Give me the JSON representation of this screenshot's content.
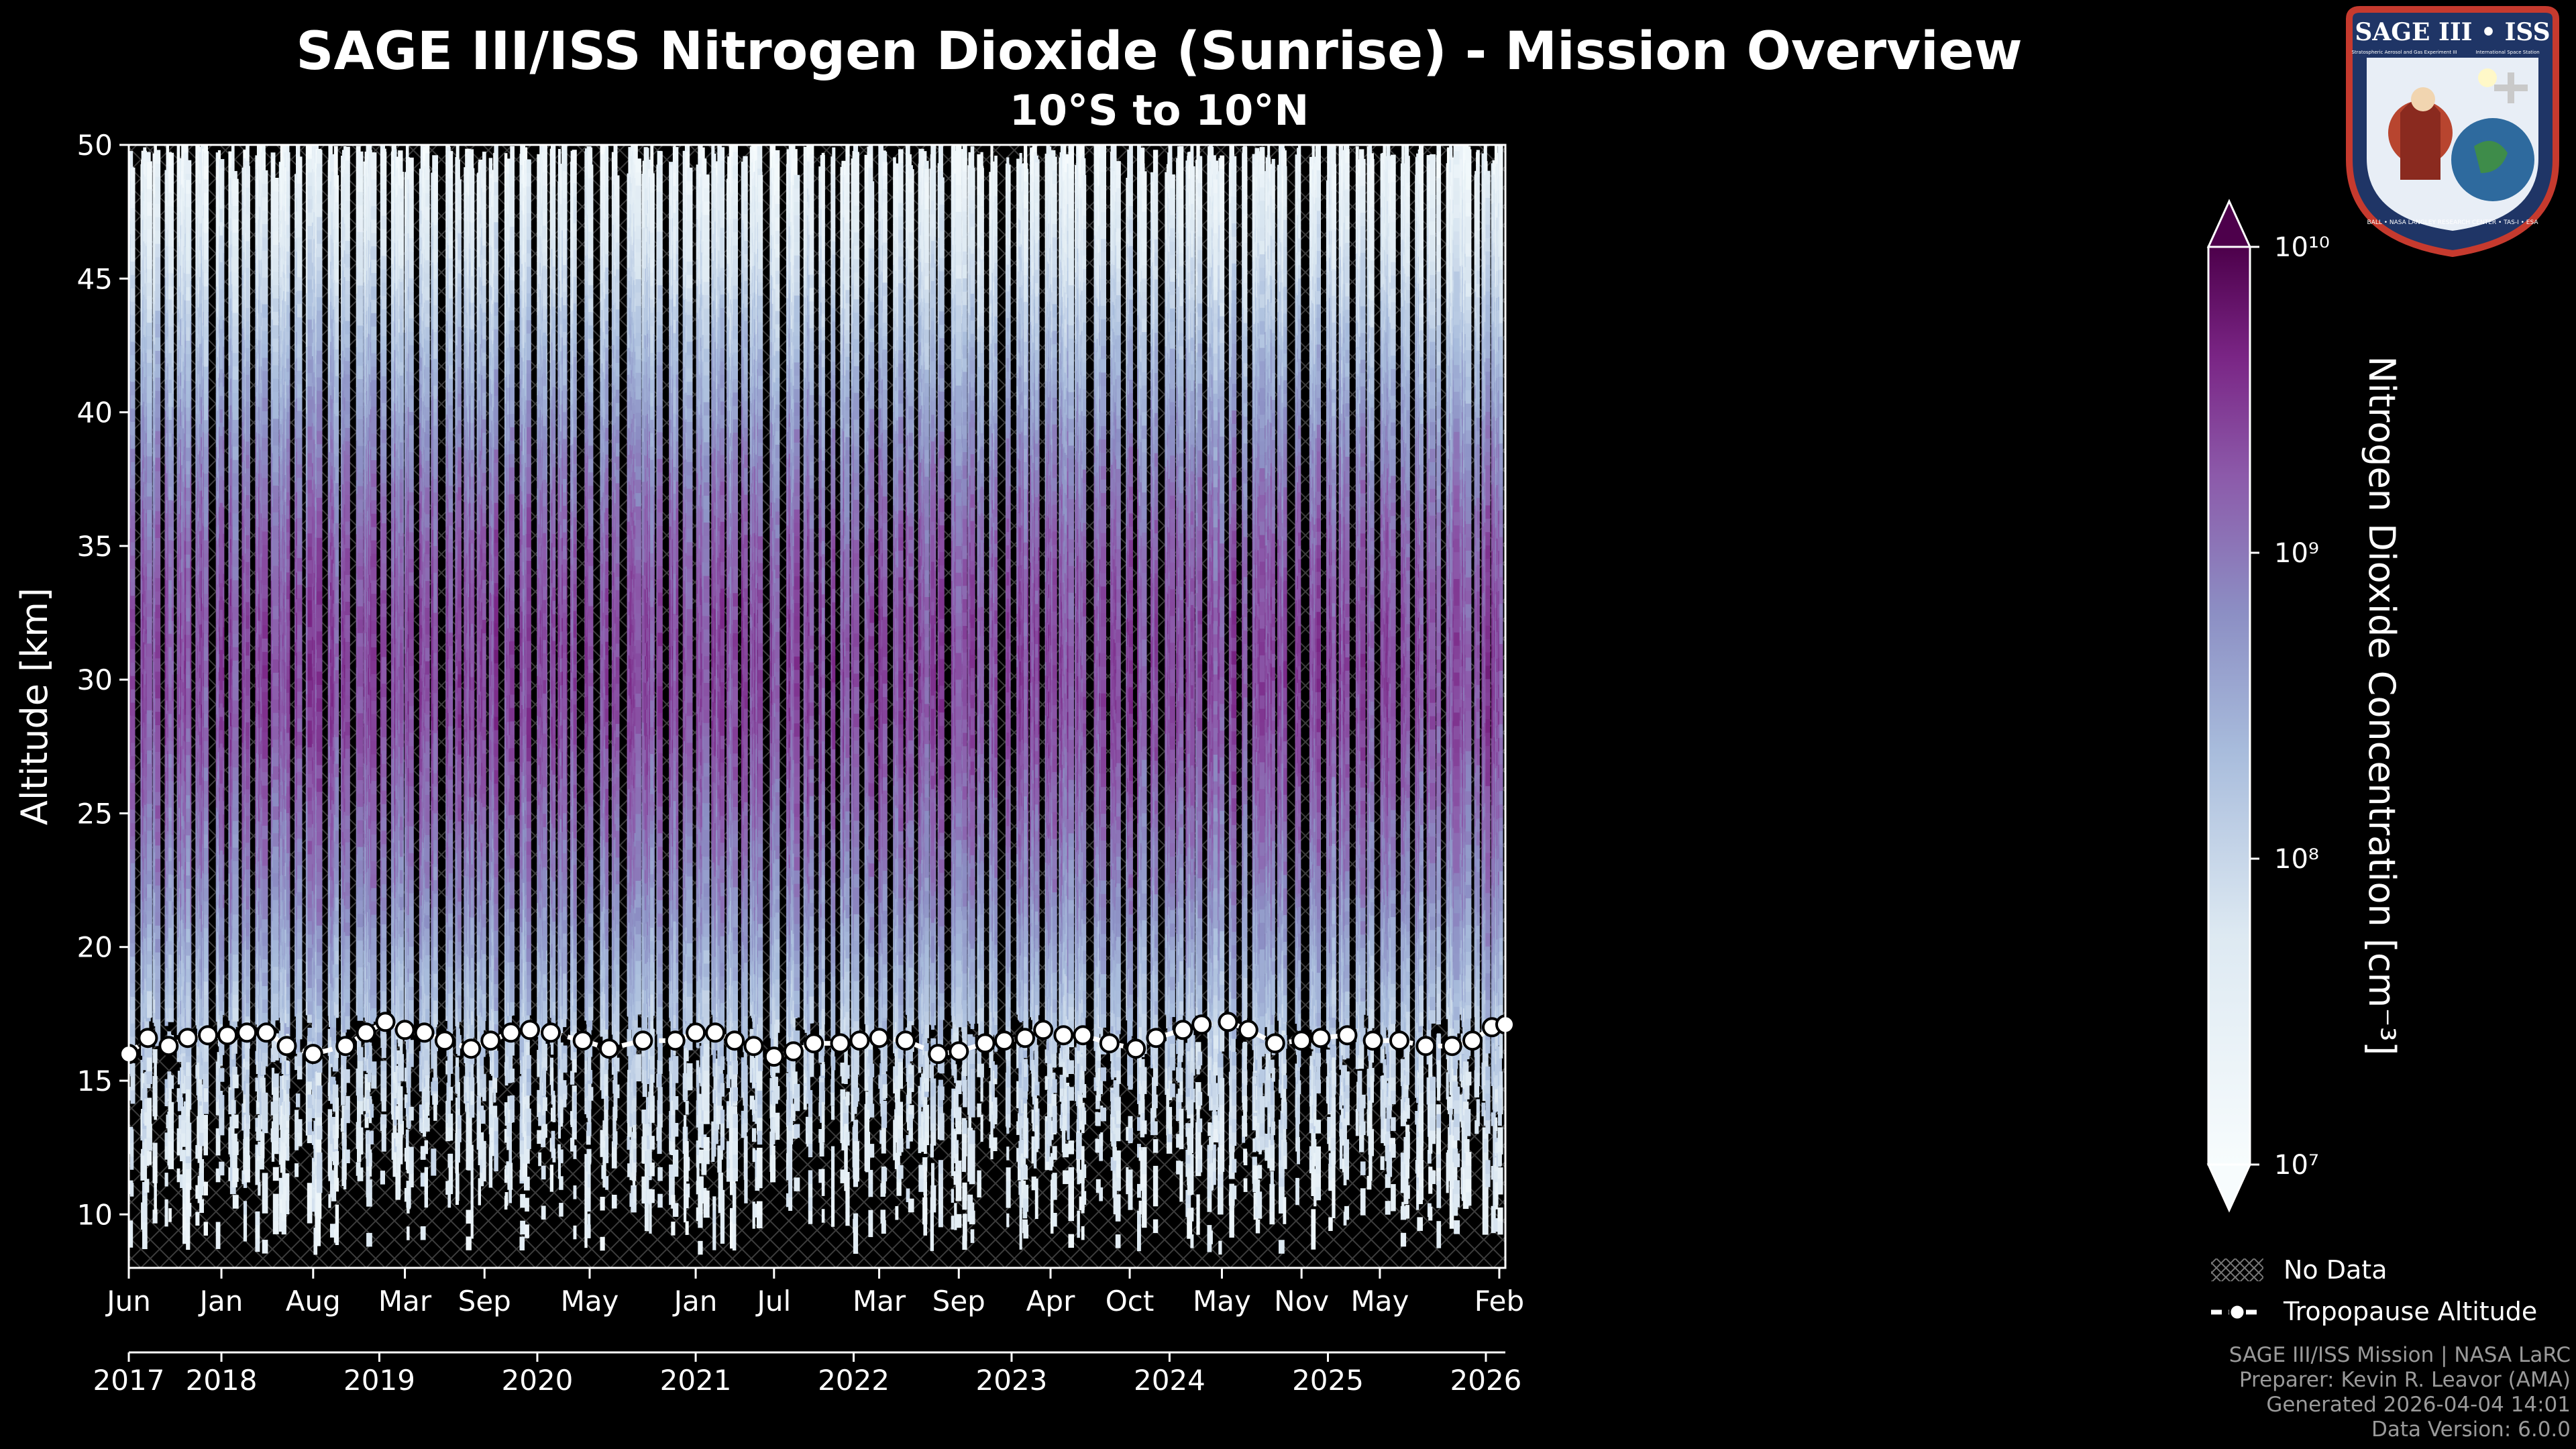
{
  "header": {
    "title": "SAGE III/ISS Nitrogen Dioxide (Sunrise) - Mission Overview",
    "subtitle": "10°S to 10°N"
  },
  "logo": {
    "text_top": "SAGE III • ISS",
    "text_ring": "BALL • NASA LANGLEY RESEARCH CENTER • TAS-I • ESA",
    "text_small_left": "Stratospheric Aerosol and Gas Experiment III",
    "text_small_right": "International Space Station"
  },
  "legend": {
    "no_data_label": "No Data",
    "tropopause_label": "Tropopause Altitude"
  },
  "footer": {
    "line1": "SAGE III/ISS Mission | NASA LaRC",
    "line2": "Preparer: Kevin R. Leavor (AMA)",
    "line3": "Generated 2026-04-04 14:01",
    "line4": "Data Version: 6.0.0"
  },
  "colors": {
    "background": "#000000",
    "tropopause": "#ffffff",
    "colormap": [
      "#f7fcfd",
      "#bfd3e6",
      "#8c96c6",
      "#88419d",
      "#4d004b"
    ]
  },
  "chart_data": {
    "type": "heatmap",
    "title": "SAGE III/ISS Nitrogen Dioxide (Sunrise) - Mission Overview",
    "subtitle": "10°S to 10°N",
    "ylabel": "Altitude [km]",
    "ylim": [
      8,
      50
    ],
    "yticks": [
      10,
      15,
      20,
      25,
      30,
      35,
      40,
      45,
      50
    ],
    "xlim": [
      "2017-06-01",
      "2026-02-15"
    ],
    "x_month_ticks": [
      {
        "date": "2017-06-01",
        "label": "Jun"
      },
      {
        "date": "2018-01-01",
        "label": "Jan"
      },
      {
        "date": "2018-08-01",
        "label": "Aug"
      },
      {
        "date": "2019-03-01",
        "label": "Mar"
      },
      {
        "date": "2019-09-01",
        "label": "Sep"
      },
      {
        "date": "2020-05-01",
        "label": "May"
      },
      {
        "date": "2021-01-01",
        "label": "Jan"
      },
      {
        "date": "2021-07-01",
        "label": "Jul"
      },
      {
        "date": "2022-03-01",
        "label": "Mar"
      },
      {
        "date": "2022-09-01",
        "label": "Sep"
      },
      {
        "date": "2023-04-01",
        "label": "Apr"
      },
      {
        "date": "2023-10-01",
        "label": "Oct"
      },
      {
        "date": "2024-05-01",
        "label": "May"
      },
      {
        "date": "2024-11-01",
        "label": "Nov"
      },
      {
        "date": "2025-05-01",
        "label": "May"
      },
      {
        "date": "2026-02-01",
        "label": "Feb"
      }
    ],
    "x_year_ticks": [
      {
        "date": "2017-06-01",
        "label": "2017"
      },
      {
        "date": "2018-01-01",
        "label": "2018"
      },
      {
        "date": "2019-01-01",
        "label": "2019"
      },
      {
        "date": "2020-01-01",
        "label": "2020"
      },
      {
        "date": "2021-01-01",
        "label": "2021"
      },
      {
        "date": "2022-01-01",
        "label": "2022"
      },
      {
        "date": "2023-01-01",
        "label": "2023"
      },
      {
        "date": "2024-01-01",
        "label": "2024"
      },
      {
        "date": "2025-01-01",
        "label": "2025"
      },
      {
        "date": "2026-01-01",
        "label": "2026"
      }
    ],
    "colorbar": {
      "label": "Nitrogen Dioxide Concentration [cm⁻³]",
      "scale": "log",
      "range": [
        10000000.0,
        10000000000.0
      ],
      "tick_values": [
        10000000.0,
        100000000.0,
        1000000000.0,
        10000000000.0
      ],
      "tick_labels": [
        "10⁷",
        "10⁸",
        "10⁹",
        "10¹⁰"
      ]
    },
    "profile": {
      "altitudes_km": [
        8,
        12,
        15,
        17,
        20,
        22,
        25,
        28,
        30,
        32,
        35,
        38,
        40,
        43,
        45,
        48,
        50
      ],
      "log10_concentration": [
        7.4,
        7.7,
        8.0,
        8.2,
        8.6,
        8.85,
        9.1,
        9.3,
        9.35,
        9.3,
        9.15,
        8.85,
        8.6,
        8.2,
        7.9,
        7.5,
        7.2
      ]
    },
    "tropopause": {
      "name": "Tropopause Altitude",
      "x": [
        "2017-06-01",
        "2017-07-15",
        "2017-09-01",
        "2017-10-15",
        "2017-12-01",
        "2018-01-15",
        "2018-03-01",
        "2018-04-15",
        "2018-06-01",
        "2018-08-01",
        "2018-10-15",
        "2018-12-01",
        "2019-01-15",
        "2019-03-01",
        "2019-04-15",
        "2019-06-01",
        "2019-08-01",
        "2019-09-15",
        "2019-11-01",
        "2019-12-15",
        "2020-02-01",
        "2020-04-15",
        "2020-06-15",
        "2020-09-01",
        "2020-11-15",
        "2021-01-01",
        "2021-02-15",
        "2021-04-01",
        "2021-05-15",
        "2021-07-01",
        "2021-08-15",
        "2021-10-01",
        "2021-12-01",
        "2022-01-15",
        "2022-03-01",
        "2022-05-01",
        "2022-07-15",
        "2022-09-01",
        "2022-11-01",
        "2022-12-15",
        "2023-02-01",
        "2023-03-15",
        "2023-05-01",
        "2023-06-15",
        "2023-08-15",
        "2023-10-15",
        "2023-12-01",
        "2024-02-01",
        "2024-03-15",
        "2024-05-15",
        "2024-07-01",
        "2024-09-01",
        "2024-11-01",
        "2024-12-15",
        "2025-02-15",
        "2025-04-15",
        "2025-06-15",
        "2025-08-15",
        "2025-10-15",
        "2025-12-01",
        "2026-01-15",
        "2026-02-15"
      ],
      "y": [
        16.0,
        16.6,
        16.3,
        16.6,
        16.7,
        16.7,
        16.8,
        16.8,
        16.3,
        16.0,
        16.3,
        16.8,
        17.2,
        16.9,
        16.8,
        16.5,
        16.2,
        16.5,
        16.8,
        16.9,
        16.8,
        16.5,
        16.2,
        16.5,
        16.5,
        16.8,
        16.8,
        16.5,
        16.3,
        15.9,
        16.1,
        16.4,
        16.4,
        16.5,
        16.6,
        16.5,
        16.0,
        16.1,
        16.4,
        16.5,
        16.6,
        16.9,
        16.7,
        16.7,
        16.4,
        16.2,
        16.6,
        16.9,
        17.1,
        17.2,
        16.9,
        16.4,
        16.5,
        16.6,
        16.7,
        16.5,
        16.5,
        16.3,
        16.3,
        16.5,
        17.0,
        17.1
      ]
    }
  }
}
